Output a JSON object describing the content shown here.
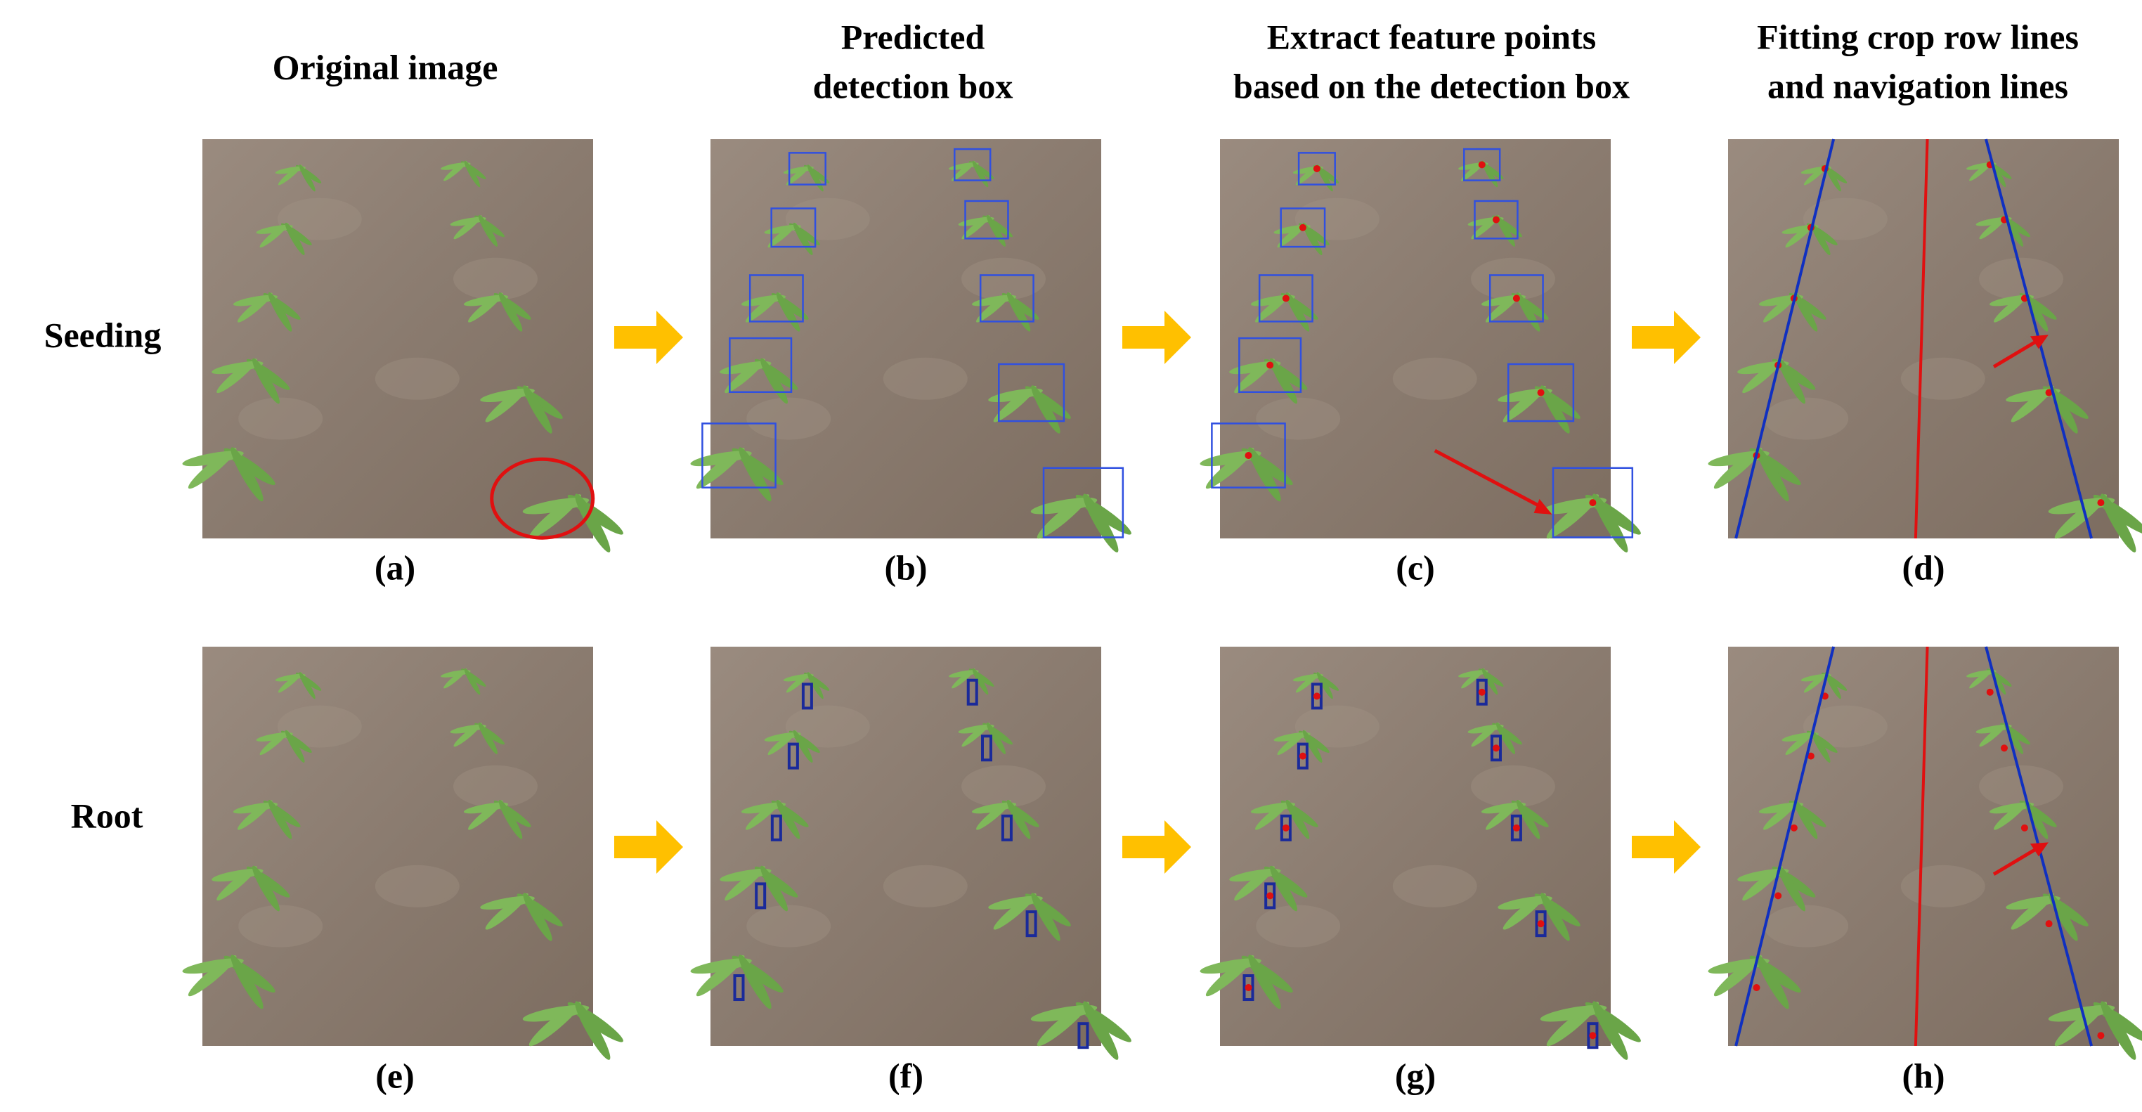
{
  "columns": [
    {
      "lines": [
        "Original image"
      ]
    },
    {
      "lines": [
        "Predicted",
        "detection box"
      ]
    },
    {
      "lines": [
        "Extract feature points",
        "based on the detection box"
      ]
    },
    {
      "lines": [
        "Fitting crop row lines",
        "and navigation lines"
      ]
    }
  ],
  "rows": [
    {
      "label": "Seeding",
      "panels": [
        "(a)",
        "(b)",
        "(c)",
        "(d)"
      ]
    },
    {
      "label": "Root",
      "panels": [
        "(e)",
        "(f)",
        "(g)",
        "(h)"
      ]
    }
  ]
}
